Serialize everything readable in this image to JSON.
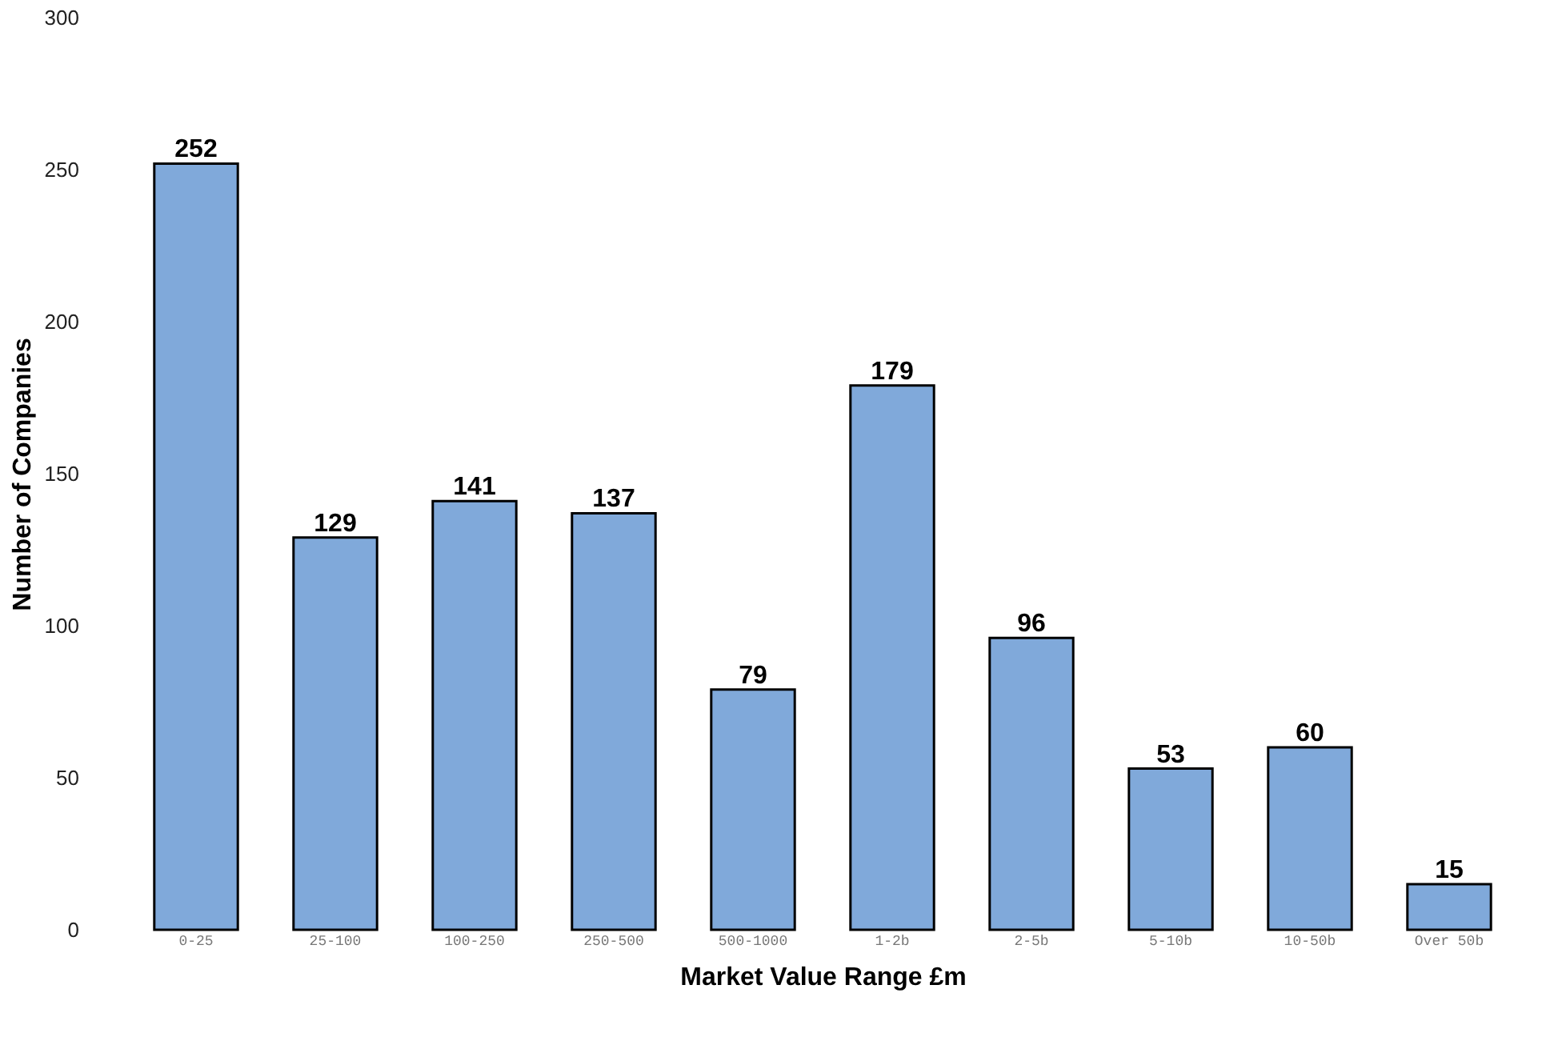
{
  "chart_data": {
    "type": "bar",
    "xlabel": "Market Value Range £m",
    "ylabel": "Number of Companies",
    "categories": [
      "0-25",
      "25-100",
      "100-250",
      "250-500",
      "500-1000",
      "1-2b",
      "2-5b",
      "5-10b",
      "10-50b",
      "Over 50b"
    ],
    "values": [
      252,
      129,
      141,
      137,
      79,
      179,
      96,
      53,
      60,
      15
    ],
    "color": "#80a9da",
    "ylim": [
      0,
      300
    ],
    "yticks": [
      0,
      50,
      100,
      150,
      200,
      250,
      300
    ],
    "grid": false,
    "data_labels": true
  }
}
